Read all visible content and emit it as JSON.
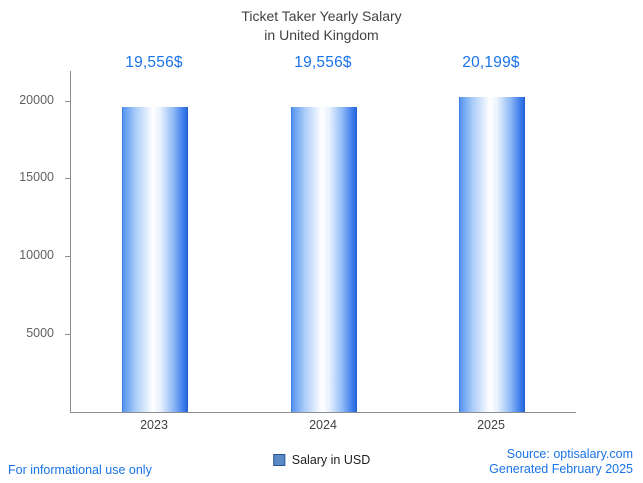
{
  "title": {
    "line1": "Ticket Taker Yearly Salary",
    "line2": "in United Kingdom"
  },
  "chart_data": {
    "type": "bar",
    "title": "Ticket Taker Yearly Salary in United Kingdom",
    "categories": [
      "2023",
      "2024",
      "2025"
    ],
    "values": [
      19556,
      19556,
      20199
    ],
    "value_labels": [
      "19,556$",
      "19,556$",
      "20,199$"
    ],
    "series_name": "Salary in USD",
    "xlabel": "",
    "ylabel": "",
    "ylim": [
      0,
      21900
    ],
    "yticks": [
      5000,
      10000,
      15000,
      20000
    ],
    "grid": false,
    "legend_position": "bottom",
    "bar_edge_color": "#2363d6",
    "bar_center_color": "#ffffff",
    "value_label_color": "#1a73e8"
  },
  "legend": {
    "label": "Salary in USD",
    "swatch_color": "#5a8ac6"
  },
  "footer": {
    "left": "For informational use only",
    "source": "Source: optisalary.com",
    "generated": "Generated February 2025"
  },
  "colors": {
    "accent_blue": "#1a73e8",
    "axis": "#8f8f8f",
    "tick_text": "#616161",
    "title_text": "#424242"
  }
}
